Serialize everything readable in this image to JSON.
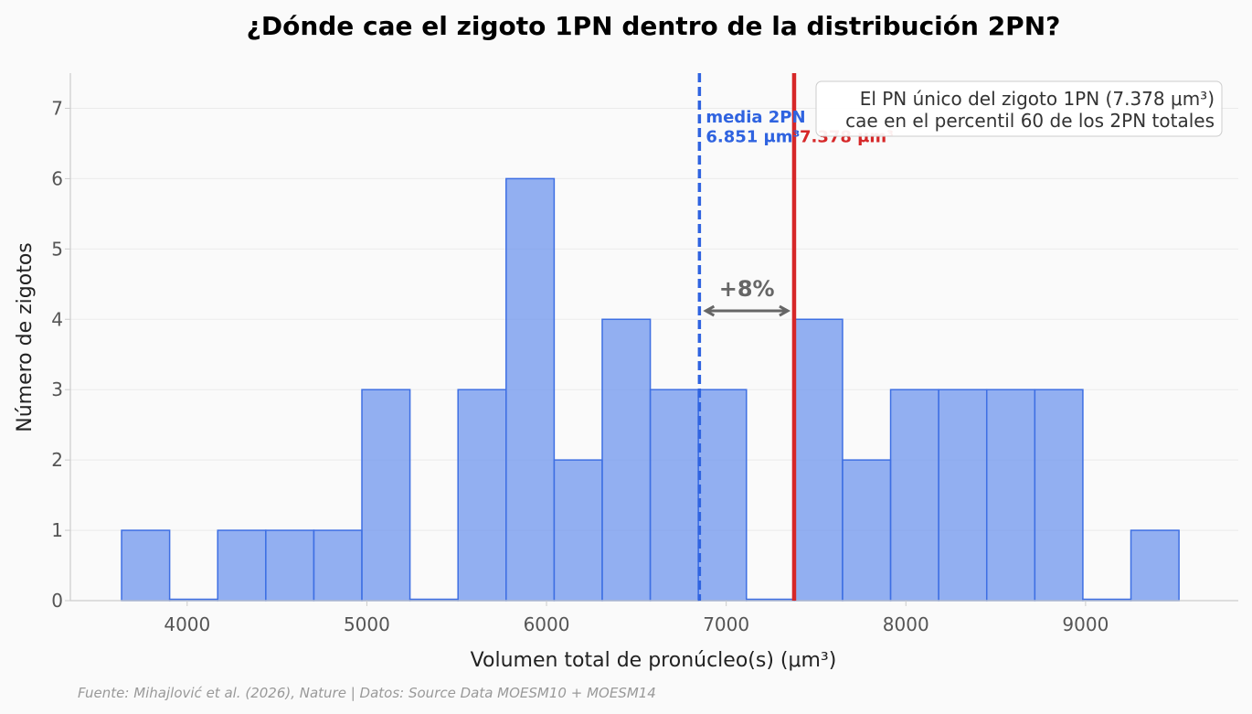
{
  "chart_data": {
    "type": "bar",
    "title": "¿Dónde cae el zigoto 1PN dentro de la distribución 2PN?",
    "xlabel": "Volumen total de pronúcleo(s) (μm³)",
    "ylabel": "Número de zigotos",
    "xlim": [
      3350,
      9850
    ],
    "ylim": [
      0,
      7.5
    ],
    "xticks": [
      4000,
      5000,
      6000,
      7000,
      8000,
      9000
    ],
    "yticks": [
      0,
      1,
      2,
      3,
      4,
      5,
      6,
      7
    ],
    "bin_start": 3635,
    "bin_width": 267.5,
    "values": [
      1,
      0,
      1,
      1,
      1,
      3,
      0,
      3,
      6,
      2,
      4,
      3,
      3,
      0,
      4,
      2,
      3,
      3,
      3,
      3,
      0,
      1
    ],
    "mean_2pn": {
      "value": 6851,
      "label_line1": "media 2PN",
      "label_line2": "6.851 μm³",
      "color": "#2f63e0"
    },
    "single_1pn": {
      "value": 7378,
      "label": "7.378 μm³",
      "color": "#d62728"
    },
    "difference": {
      "label": "+8%",
      "y": 4.12
    },
    "info_box": {
      "line1": "El PN único del zigoto 1PN (7.378 μm³)",
      "line2": "cae en el percentil 60 de los 2PN totales",
      "placement": "top-right"
    },
    "grid": true,
    "source": "Fuente: Mihajlović et al. (2026), Nature | Datos: Source Data MOESM10 + MOESM14"
  }
}
